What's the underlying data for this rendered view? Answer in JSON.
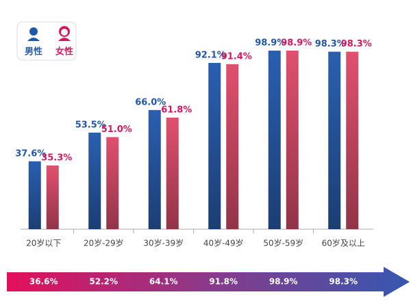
{
  "chart_data": {
    "type": "bar",
    "categories": [
      "20岁以下",
      "20岁-29岁",
      "30岁-39岁",
      "40岁-49岁",
      "50岁-59岁",
      "60岁及以上"
    ],
    "series": [
      {
        "name": "男性",
        "color": "#2a5fb0",
        "label_color": "#2357a8",
        "values": [
          37.6,
          53.5,
          66.0,
          92.1,
          98.9,
          98.3
        ],
        "value_labels": [
          "37.6%",
          "53.5%",
          "66.0%",
          "92.1%",
          "98.9%",
          "98.3%"
        ]
      },
      {
        "name": "女性",
        "color": "#e0506e",
        "label_color": "#d6195f",
        "values": [
          35.3,
          51.0,
          61.8,
          91.4,
          98.9,
          98.3
        ],
        "value_labels": [
          "35.3%",
          "51.0%",
          "61.8%",
          "91.4%",
          "98.9%",
          "98.3%"
        ]
      }
    ],
    "overall": {
      "values": [
        36.6,
        52.2,
        64.1,
        91.8,
        98.9,
        98.3
      ],
      "value_labels": [
        "36.6%",
        "52.2%",
        "64.1%",
        "91.8%",
        "98.9%",
        "98.3%"
      ]
    }
  }
}
